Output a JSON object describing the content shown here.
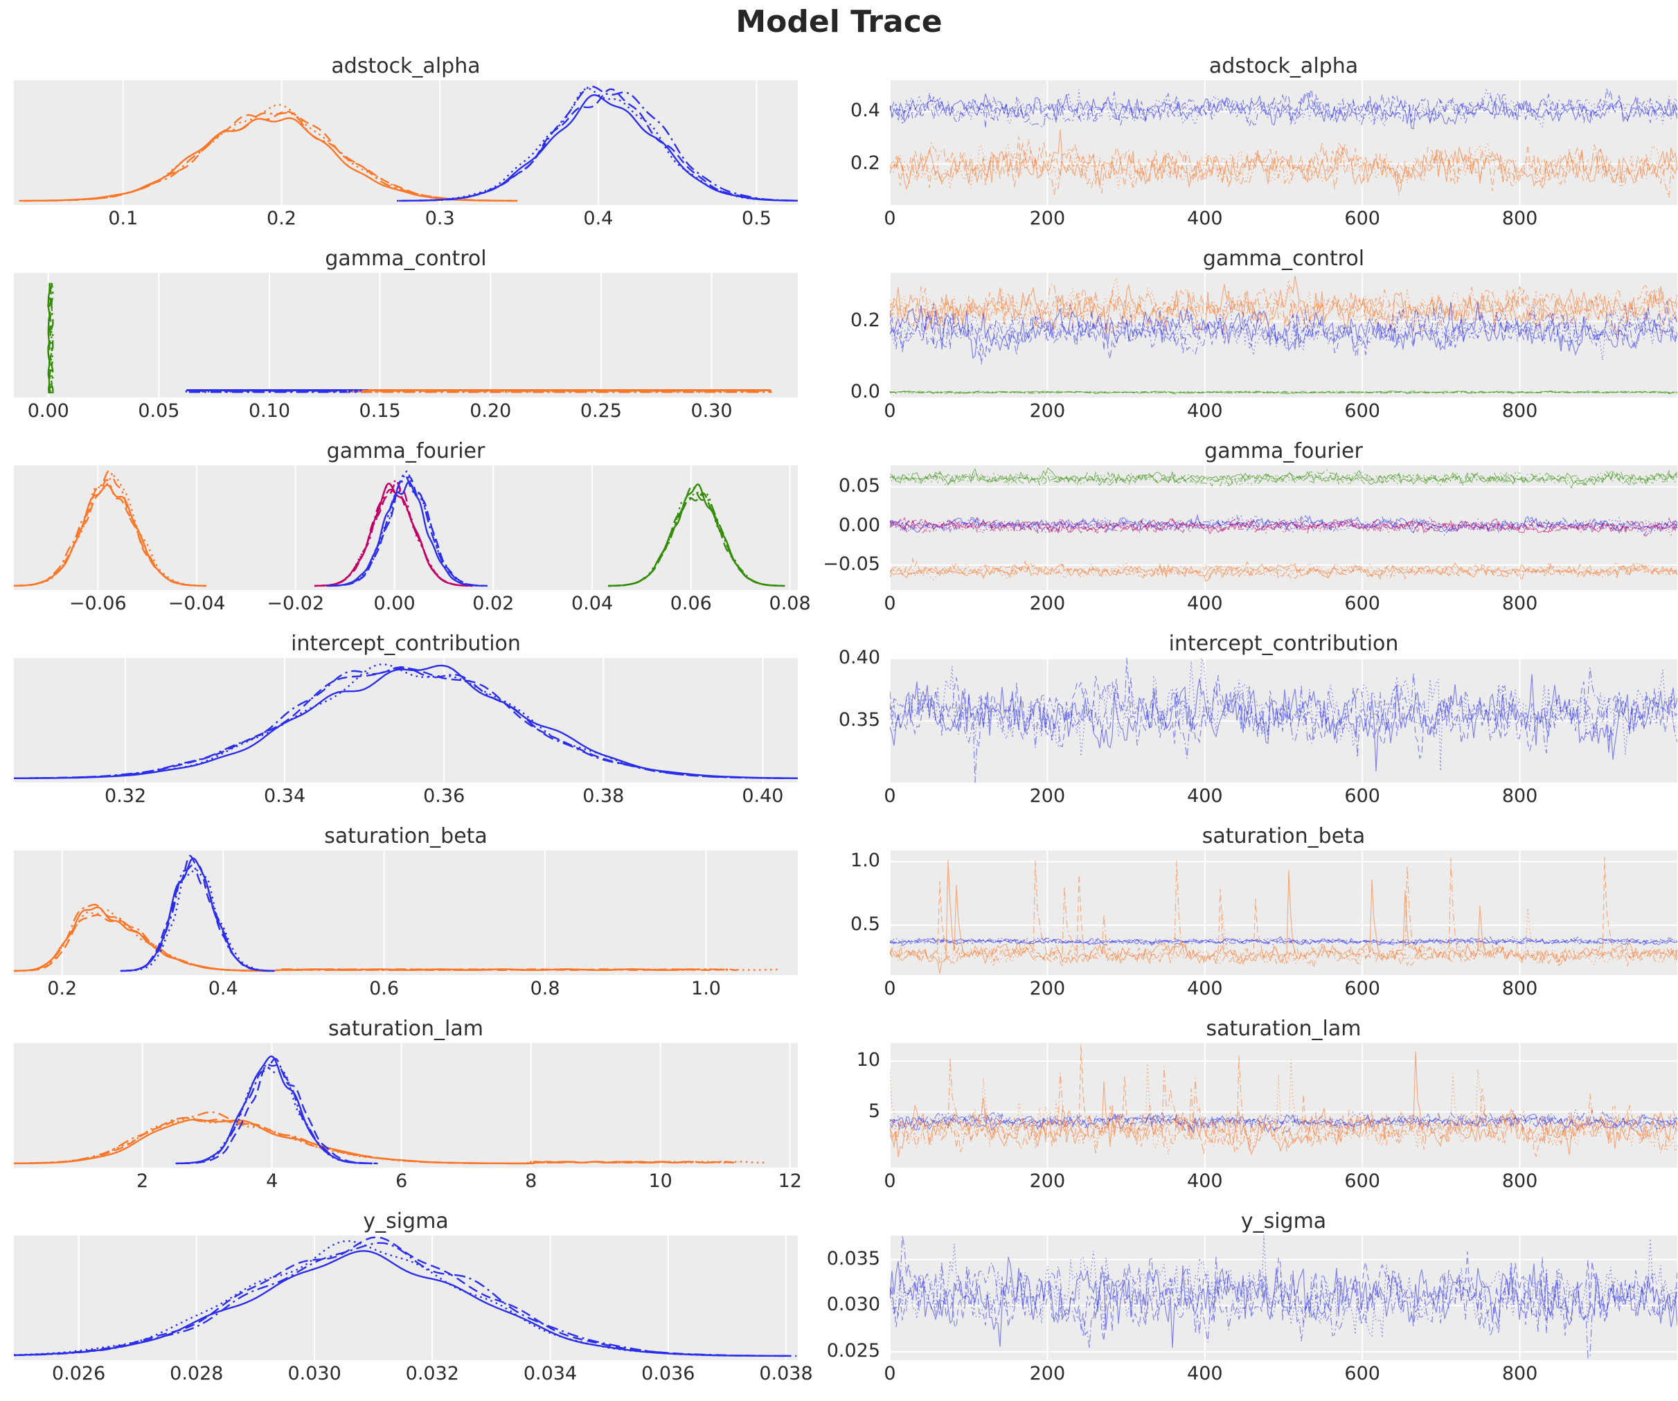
{
  "figure": {
    "title": "Model Trace",
    "chains": 4,
    "draws_per_chain": 1000
  },
  "style": {
    "panel_background": "#ececec",
    "grid_color": "#ffffff",
    "text_color": "#2b2b2b",
    "title_color": "#262626",
    "chain_line_styles": [
      "solid",
      "dashed",
      "dotted",
      "dashdot"
    ],
    "palette": {
      "blue": "#2a2eec",
      "orange": "#fc7628",
      "green": "#328c06",
      "magenta": "#c10065"
    }
  },
  "chart_data": [
    {
      "type": "kde+trace",
      "name": "adstock_alpha",
      "kde": {
        "xlim": [
          0.031,
          0.526
        ],
        "xticks": {
          "values": [
            0.1,
            0.2,
            0.3,
            0.4,
            0.5
          ],
          "labels": [
            "0.1",
            "0.2",
            "0.3",
            "0.4",
            "0.5"
          ]
        },
        "groups": [
          {
            "kind": "bell",
            "color": "#fc7628",
            "mean": 0.195,
            "sd": 0.041,
            "height": 0.78
          },
          {
            "kind": "bell",
            "color": "#2a2eec",
            "mean": 0.406,
            "sd": 0.034,
            "height": 0.95
          }
        ]
      },
      "trace": {
        "xlim": [
          0,
          1000
        ],
        "xticks": {
          "values": [
            0,
            200,
            400,
            600,
            800
          ],
          "labels": [
            "0",
            "200",
            "400",
            "600",
            "800"
          ]
        },
        "ylim": [
          0.043,
          0.519
        ],
        "yticks": {
          "values": [
            0.4,
            0.2
          ],
          "labels": [
            "0.4",
            "0.2"
          ]
        },
        "bands": [
          {
            "color": "#2a2eec",
            "center": 0.41,
            "sigma": 0.02
          },
          {
            "color": "#fc7628",
            "center": 0.185,
            "sigma": 0.028
          }
        ]
      }
    },
    {
      "type": "kde+trace",
      "name": "gamma_control",
      "kde": {
        "xlim": [
          -0.0156,
          0.339
        ],
        "xticks": {
          "values": [
            0.0,
            0.05,
            0.1,
            0.15,
            0.2,
            0.25,
            0.3
          ],
          "labels": [
            "0.00",
            "0.05",
            "0.10",
            "0.15",
            "0.20",
            "0.25",
            "0.30"
          ]
        },
        "groups": [
          {
            "kind": "spike",
            "color": "#328c06",
            "x": 0.001,
            "height": 0.96
          },
          {
            "kind": "flat",
            "color": "#2a2eec",
            "x0": 0.062,
            "x1": 0.146,
            "height": 0.02
          },
          {
            "kind": "flat",
            "color": "#fc7628",
            "x0": 0.135,
            "x1": 0.328,
            "height": 0.02
          }
        ]
      },
      "trace": {
        "xlim": [
          0,
          1000
        ],
        "xticks": {
          "values": [
            0,
            200,
            400,
            600,
            800
          ],
          "labels": [
            "0",
            "200",
            "400",
            "600",
            "800"
          ]
        },
        "ylim": [
          -0.014,
          0.337
        ],
        "yticks": {
          "values": [
            0.2,
            0.0
          ],
          "labels": [
            "0.2",
            "0.0"
          ]
        },
        "bands": [
          {
            "color": "#fc7628",
            "center": 0.235,
            "sigma": 0.022
          },
          {
            "color": "#2a2eec",
            "center": 0.175,
            "sigma": 0.022
          },
          {
            "color": "#328c06",
            "center": 0.0008,
            "sigma": 0.0012
          }
        ]
      }
    },
    {
      "type": "kde+trace",
      "name": "gamma_fourier",
      "kde": {
        "xlim": [
          -0.077,
          0.0816
        ],
        "xticks": {
          "values": [
            -0.06,
            -0.04,
            -0.02,
            0.0,
            0.02,
            0.04,
            0.06,
            0.08
          ],
          "labels": [
            "−0.06",
            "−0.04",
            "−0.02",
            "0.00",
            "0.02",
            "0.04",
            "0.06",
            "0.08"
          ]
        },
        "groups": [
          {
            "kind": "bell",
            "color": "#fc7628",
            "mean": -0.058,
            "sd": 0.0052,
            "height": 0.9
          },
          {
            "kind": "bell",
            "color": "#c10065",
            "mean": -0.0005,
            "sd": 0.0042,
            "height": 0.86
          },
          {
            "kind": "bell",
            "color": "#2a2eec",
            "mean": 0.0025,
            "sd": 0.0042,
            "height": 0.9
          },
          {
            "kind": "bell",
            "color": "#328c06",
            "mean": 0.0615,
            "sd": 0.0047,
            "height": 0.88
          }
        ]
      },
      "trace": {
        "xlim": [
          0,
          1000
        ],
        "xticks": {
          "values": [
            0,
            200,
            400,
            600,
            800
          ],
          "labels": [
            "0",
            "200",
            "400",
            "600",
            "800"
          ]
        },
        "ylim": [
          -0.0818,
          0.0774
        ],
        "yticks": {
          "values": [
            0.05,
            0.0,
            -0.05
          ],
          "labels": [
            "0.05",
            "0.00",
            "−0.05"
          ]
        },
        "bands": [
          {
            "color": "#328c06",
            "center": 0.0605,
            "sigma": 0.003
          },
          {
            "color": "#2a2eec",
            "center": 0.0015,
            "sigma": 0.003
          },
          {
            "color": "#c10065",
            "center": -0.0005,
            "sigma": 0.003
          },
          {
            "color": "#fc7628",
            "center": -0.0575,
            "sigma": 0.003
          }
        ]
      }
    },
    {
      "type": "kde+trace",
      "name": "intercept_contribution",
      "kde": {
        "xlim": [
          0.306,
          0.4044
        ],
        "xticks": {
          "values": [
            0.32,
            0.34,
            0.36,
            0.38,
            0.4
          ],
          "labels": [
            "0.32",
            "0.34",
            "0.36",
            "0.38",
            "0.40"
          ]
        },
        "groups": [
          {
            "kind": "bell",
            "color": "#2a2eec",
            "mean": 0.3555,
            "sd": 0.0135,
            "height": 0.93
          }
        ]
      },
      "trace": {
        "xlim": [
          0,
          1000
        ],
        "xticks": {
          "values": [
            0,
            200,
            400,
            600,
            800
          ],
          "labels": [
            "0",
            "200",
            "400",
            "600",
            "800"
          ]
        },
        "ylim": [
          0.3006,
          0.4006
        ],
        "yticks": {
          "values": [
            0.4,
            0.35
          ],
          "labels": [
            "0.40",
            "0.35"
          ]
        },
        "bands": [
          {
            "color": "#2a2eec",
            "center": 0.3555,
            "sigma": 0.009,
            "spikes": {
              "prob": 0.012,
              "max": 0.4,
              "sym": true
            }
          }
        ]
      }
    },
    {
      "type": "kde+trace",
      "name": "saturation_beta",
      "kde": {
        "xlim": [
          0.14,
          1.114
        ],
        "xticks": {
          "values": [
            0.2,
            0.4,
            0.6,
            0.8,
            1.0
          ],
          "labels": [
            "0.2",
            "0.4",
            "0.6",
            "0.8",
            "1.0"
          ]
        },
        "groups": [
          {
            "kind": "bell",
            "color": "#fc7628",
            "mean": 0.235,
            "sd_left": 0.025,
            "sd_right": 0.06,
            "height": 0.55,
            "tail_to": 1.09
          },
          {
            "kind": "bell",
            "color": "#2a2eec",
            "mean": 0.362,
            "sd_left": 0.023,
            "sd_right": 0.027,
            "height": 0.95
          }
        ]
      },
      "trace": {
        "xlim": [
          0,
          1000
        ],
        "xticks": {
          "values": [
            0,
            200,
            400,
            600,
            800
          ],
          "labels": [
            "0",
            "200",
            "400",
            "600",
            "800"
          ]
        },
        "ylim": [
          0.108,
          1.088
        ],
        "yticks": {
          "values": [
            1.0,
            0.5
          ],
          "labels": [
            "1.0",
            "0.5"
          ]
        },
        "bands": [
          {
            "color": "#2a2eec",
            "center": 0.372,
            "sigma": 0.009
          },
          {
            "color": "#fc7628",
            "center": 0.27,
            "sigma": 0.028,
            "spikes": {
              "prob": 0.012,
              "max": 1.04
            }
          }
        ]
      }
    },
    {
      "type": "kde+trace",
      "name": "saturation_lam",
      "kde": {
        "xlim": [
          0.015,
          12.12
        ],
        "xticks": {
          "values": [
            2,
            4,
            6,
            8,
            10,
            12
          ],
          "labels": [
            "2",
            "4",
            "6",
            "8",
            "10",
            "12"
          ]
        },
        "groups": [
          {
            "kind": "bell",
            "color": "#fc7628",
            "mean": 2.8,
            "sd_left": 0.8,
            "sd_right": 1.35,
            "height": 0.4,
            "tail_to": 11.6
          },
          {
            "kind": "bell",
            "color": "#2a2eec",
            "mean": 4.0,
            "sd_left": 0.38,
            "sd_right": 0.42,
            "height": 0.93
          }
        ]
      },
      "trace": {
        "xlim": [
          0,
          1000
        ],
        "xticks": {
          "values": [
            0,
            200,
            400,
            600,
            800
          ],
          "labels": [
            "0",
            "200",
            "400",
            "600",
            "800"
          ]
        },
        "ylim": [
          -0.5,
          11.8
        ],
        "yticks": {
          "values": [
            10,
            5
          ],
          "labels": [
            "10",
            "5"
          ]
        },
        "bands": [
          {
            "color": "#2a2eec",
            "center": 4.1,
            "sigma": 0.28
          },
          {
            "color": "#fc7628",
            "center": 3.1,
            "sigma": 0.7,
            "spikes": {
              "prob": 0.015,
              "max": 11.3
            }
          }
        ]
      }
    },
    {
      "type": "kde+trace",
      "name": "y_sigma",
      "kde": {
        "xlim": [
          0.0249,
          0.0382
        ],
        "xticks": {
          "values": [
            0.026,
            0.028,
            0.03,
            0.032,
            0.034,
            0.036,
            0.038
          ],
          "labels": [
            "0.026",
            "0.028",
            "0.030",
            "0.032",
            "0.034",
            "0.036",
            "0.038"
          ]
        },
        "groups": [
          {
            "kind": "bell",
            "color": "#2a2eec",
            "mean": 0.0309,
            "sd": 0.0019,
            "height": 0.92
          }
        ]
      },
      "trace": {
        "xlim": [
          0,
          1000
        ],
        "xticks": {
          "values": [
            0,
            200,
            400,
            600,
            800
          ],
          "labels": [
            "0",
            "200",
            "400",
            "600",
            "800"
          ]
        },
        "ylim": [
          0.0241,
          0.0376
        ],
        "yticks": {
          "values": [
            0.035,
            0.03,
            0.025
          ],
          "labels": [
            "0.035",
            "0.030",
            "0.025"
          ]
        },
        "bands": [
          {
            "color": "#2a2eec",
            "center": 0.031,
            "sigma": 0.0013,
            "spikes": {
              "prob": 0.012,
              "max": 0.0372,
              "sym": true
            }
          }
        ]
      }
    }
  ]
}
